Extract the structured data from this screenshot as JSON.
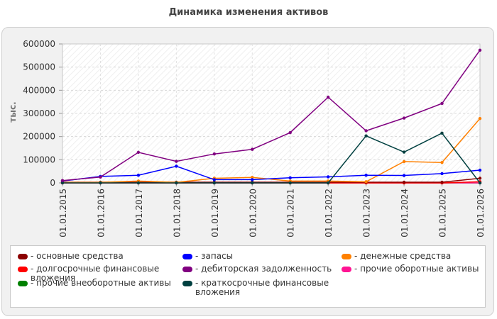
{
  "chart_data": {
    "type": "line",
    "title": "Динамика изменения активов",
    "ylabel": "тыс.",
    "xlabel": "",
    "ylim": [
      0,
      600000
    ],
    "yticks": [
      "0",
      "100000",
      "200000",
      "300000",
      "400000",
      "500000",
      "600000"
    ],
    "categories": [
      "01.01.2015",
      "01.01.2016",
      "01.01.2017",
      "01.01.2018",
      "01.01.2019",
      "01.01.2020",
      "01.01.2021",
      "01.01.2022",
      "01.01.2023",
      "01.01.2024",
      "01.01.2025",
      "01.01.2026"
    ],
    "grid": true,
    "legend_position": "bottom",
    "series": [
      {
        "name": "основные средства",
        "color": "#8b0000",
        "values": [
          3000,
          3000,
          3000,
          3000,
          3000,
          3000,
          3000,
          3000,
          3000,
          3000,
          3000,
          20000
        ]
      },
      {
        "name": "долгосрочные финансовые вложения",
        "color": "#ff0000",
        "values": [
          0,
          0,
          0,
          0,
          0,
          0,
          0,
          0,
          0,
          0,
          0,
          5000
        ]
      },
      {
        "name": "прочие внеоборотные активы",
        "color": "#008000",
        "values": [
          0,
          0,
          0,
          0,
          0,
          0,
          0,
          0,
          0,
          0,
          0,
          0
        ]
      },
      {
        "name": "запасы",
        "color": "#0000ff",
        "values": [
          8000,
          28000,
          33000,
          72000,
          14000,
          14000,
          22000,
          26000,
          33000,
          32000,
          40000,
          55000
        ]
      },
      {
        "name": "дебиторская задолженность",
        "color": "#800080",
        "values": [
          10000,
          25000,
          132000,
          93000,
          125000,
          145000,
          217000,
          370000,
          225000,
          280000,
          343000,
          573000
        ]
      },
      {
        "name": "краткосрочные финансовые вложения",
        "color": "#004040",
        "values": [
          0,
          0,
          0,
          0,
          0,
          0,
          0,
          0,
          203000,
          133000,
          215000,
          0
        ]
      },
      {
        "name": "денежные средства",
        "color": "#ff8000",
        "values": [
          2000,
          2000,
          8000,
          2000,
          20000,
          24000,
          8000,
          8000,
          5000,
          92000,
          88000,
          278000
        ]
      },
      {
        "name": "прочие оборотные активы",
        "color": "#ff1493",
        "values": [
          0,
          0,
          0,
          0,
          0,
          0,
          0,
          0,
          0,
          0,
          0,
          0
        ]
      }
    ]
  }
}
